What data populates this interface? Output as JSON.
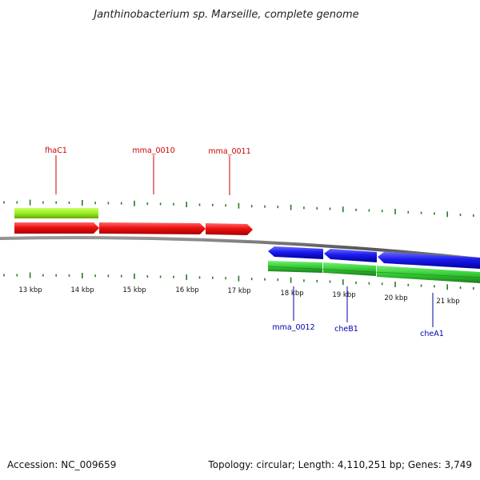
{
  "header": {
    "title": "Janthinobacterium sp. Marseille, complete genome"
  },
  "footer": {
    "accession": "Accession: NC_009659",
    "summary": "Topology: circular; Length: 4,110,251 bp; Genes: 3,749"
  },
  "colors": {
    "forward_cds": "#ee1111",
    "reverse_cds": "#1a1aee",
    "forward_gene": "#99ee22",
    "reverse_gene": "#33cc33",
    "label_forward": "#cc0000",
    "label_reverse": "#0000aa",
    "backbone": "#666666",
    "ticks": "#2a7a2a"
  },
  "scale": {
    "tick_labels": [
      "13 kbp",
      "14 kbp",
      "15 kbp",
      "16 kbp",
      "17 kbp",
      "18 kbp",
      "19 kbp",
      "20 kbp",
      "21 kbp"
    ]
  },
  "genes": {
    "forward_labels": [
      "fhaC1",
      "mma_0010",
      "mma_0011"
    ],
    "reverse_labels": [
      "mma_0012",
      "cheB1",
      "cheA1"
    ]
  }
}
